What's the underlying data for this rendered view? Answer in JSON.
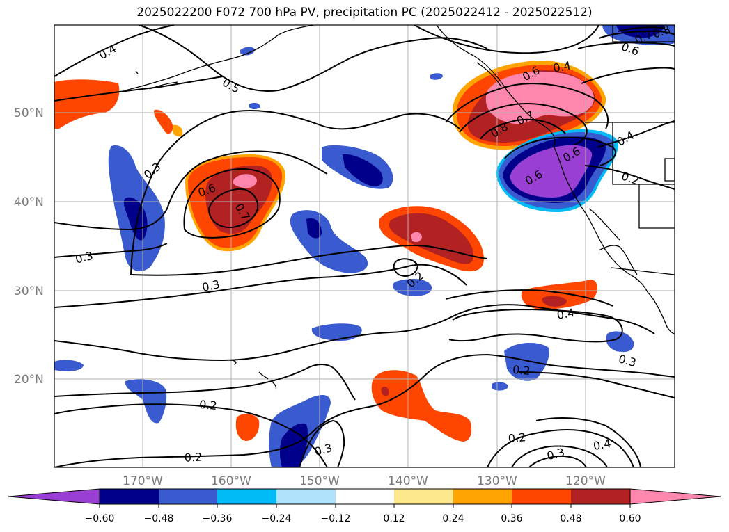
{
  "title": "2025022200 F072 700 hPa PV, precipitation PC (2025022412 - 2025022512)",
  "lat_labels": [
    "50°N",
    "40°N",
    "30°N",
    "20°N"
  ],
  "lon_labels": [
    "170°W",
    "160°W",
    "150°W",
    "140°W",
    "130°W",
    "120°W"
  ],
  "contour_labels": [
    "0.4",
    "0.5",
    "0.6",
    "0.7",
    "0.3",
    "0.3",
    "0.3",
    "0.2",
    "0.2",
    "0.2",
    "0.3",
    "0.6",
    "0.4",
    "0.8",
    "0.7",
    "0.6",
    "0.6",
    "0.4",
    "0.2",
    "0.4",
    "0.2",
    "0.3",
    "0.2",
    "0.3",
    "0.4",
    "0.6",
    "0.7",
    "0.8"
  ],
  "colorbar": {
    "ticks": [
      "−0.60",
      "−0.48",
      "−0.36",
      "−0.24",
      "−0.12",
      "0.12",
      "0.24",
      "0.36",
      "0.48",
      "0.60"
    ],
    "colors": [
      "#9a3fd3",
      "#00008b",
      "#3a5bcf",
      "#00bbf5",
      "#b0e2fa",
      "#ffffff",
      "#fde98c",
      "#ffa400",
      "#fe4600",
      "#b22222",
      "#ff86ac"
    ]
  },
  "colors": {
    "neg_extreme": "#9a3fd3",
    "neg_dark": "#00008b",
    "neg_mid": "#3a5bcf",
    "neg_light": "#00bbf5",
    "neg_pale": "#b0e2fa",
    "pos_pale": "#fde98c",
    "pos_orange": "#ffa400",
    "pos_red": "#fe4600",
    "pos_dark": "#b22222",
    "pos_extreme": "#ff86ac"
  }
}
